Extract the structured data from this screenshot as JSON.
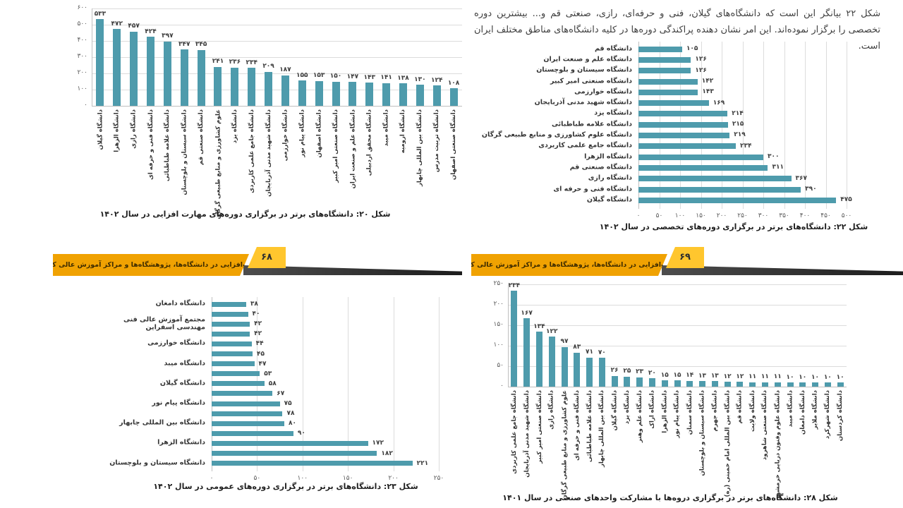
{
  "page_text": {
    "intro": "شکل ۲۲ بیانگر این است که دانشگاه‌های گیلان، فنی و حرفه‌ای، رازی، صنعتی قم و... بیشترین دوره تخصصی را برگزار نموده‌اند. این امر نشان دهنده پراکندگی دوره‌ها در کلیه دانشگاه‌های مناطق مختلف ایران است."
  },
  "banners": [
    {
      "title": "مهارت‌افزایی در دانشگاه‌ها، پژوهشگاه‌ها و مراکز آموزش عالی کشور",
      "page_number": "۶۸"
    },
    {
      "title": "مهارت‌افزایی در دانشگاه‌ها، پژوهشگاه‌ها و مراکز آموزش عالی کشور",
      "page_number": "۶۹"
    }
  ],
  "colors": {
    "bar": "#4E9BAC",
    "banner_orange": "#F0A202",
    "banner_yellow": "#FFC62E",
    "banner_shadow": "#333333"
  },
  "chart_data": [
    {
      "type": "bar",
      "orientation": "vertical",
      "title": "شکل ۲۰: دانشگاه‌های برتر در برگزاری دوره‌های مهارت افزایی در سال ۱۴۰۲",
      "categories": [
        "دانشگاه گیلان",
        "دانشگاه الزهرا",
        "دانشگاه رازی",
        "دانشگاه فنی و حرفه ای",
        "دانشگاه علامه طباطبائی",
        "دانشگاه سیستان و بلوچستان",
        "دانشگاه صنعتی قم",
        "علوم کشاورزی و منابع طبیعی گرگان",
        "دانشگاه یزد",
        "دانشگاه جامع علمی کاربردی",
        "دانشگاه شهید مدنی آذربایجان",
        "دانشگاه خوارزمی",
        "دانشگاه پیام نور",
        "دانشگاه اصفهان",
        "دانشگاه صنعتی امیر کبیر",
        "دانشگاه علم و صنعت ایران",
        "دانشگاه محقق اردبیلی",
        "دانشگاه میبد",
        "دانشگاه ارومیه",
        "دانشگاه بین المللی چابهار",
        "دانشگاه تربیت مدرس",
        "دانشگاه صنعتی اصفهان"
      ],
      "values": [
        533,
        472,
        457,
        424,
        397,
        347,
        345,
        241,
        236,
        234,
        209,
        187,
        155,
        153,
        150,
        147,
        143,
        141,
        138,
        130,
        124,
        108
      ],
      "ticks": [
        0,
        100,
        200,
        300,
        400,
        500,
        600
      ],
      "axis_max": 600,
      "grid": true,
      "legend": false
    },
    {
      "type": "bar",
      "orientation": "horizontal",
      "title": "شکل ۲۲: دانشگاه‌های برتر در برگزاری دوره‌های تخصصی در سال ۱۴۰۲",
      "categories": [
        "دانشگاه قم",
        "دانشگاه علم و صنعت ایران",
        "دانشگاه سیستان و بلوچستان",
        "دانشگاه صنعتی امیر کبیر",
        "دانشگاه خوارزمی",
        "دانشگاه شهید مدنی آذربایجان",
        "دانشگاه یزد",
        "دانشگاه علامه طباطبائی",
        "دانشگاه علوم کشاورزی و منابع طبیعی گرگان",
        "دانشگاه جامع علمی کاربردی",
        "دانشگاه الزهرا",
        "دانشگاه صنعتی قم",
        "دانشگاه رازی",
        "دانشگاه فنی و حرفه ای",
        "دانشگاه گیلان"
      ],
      "values": [
        105,
        126,
        126,
        142,
        143,
        169,
        214,
        215,
        219,
        234,
        300,
        311,
        367,
        390,
        475
      ],
      "ticks": [
        0,
        50,
        100,
        150,
        200,
        250,
        300,
        350,
        400,
        450,
        500
      ],
      "axis_max": 500,
      "grid": true,
      "legend": false
    },
    {
      "type": "bar",
      "orientation": "horizontal",
      "title": "شکل ۲۳: دانشگاه‌های برتر در برگزاری دوره‌های عمومی در سال ۱۴۰۲",
      "categories": [
        "دانشگاه دامغان",
        "",
        "مجتمع آموزش عالی فنی مهندسی اسفراین",
        "",
        "دانشگاه خوارزمی",
        "",
        "دانشگاه میبد",
        "",
        "دانشگاه گیلان",
        "",
        "دانشگاه پیام نور",
        "",
        "دانشگاه بین المللی چابهار",
        "",
        "دانشگاه الزهرا",
        "",
        "دانشگاه سیستان و بلوچستان"
      ],
      "values": [
        38,
        40,
        42,
        42,
        44,
        45,
        47,
        53,
        58,
        67,
        75,
        78,
        80,
        90,
        172,
        182,
        221
      ],
      "ticks": [
        0,
        50,
        100,
        150,
        200,
        250
      ],
      "axis_max": 250,
      "grid": true,
      "legend": false
    },
    {
      "type": "bar",
      "orientation": "vertical",
      "title": "شکل ۲۸: دانشگاه‌های برتر در برگزاری دروه‌ها با مشارکت واحدهای صنعتی در سال ۱۴۰۱",
      "categories": [
        "دانشگاه جامع علمی کاربردی",
        "دانشگاه شهید مدنی آذربایجان",
        "دانشگاه صنعتی امیر کبیر",
        "دانشگاه رازی",
        "علوم کشاورزی و منابع طبیعی گرگان",
        "دانشگاه فنی و حرفه ای",
        "دانشگاه علامه طباطبائی",
        "دانشگاه بین المللی چابهار",
        "دانشگاه گیلان",
        "دانشگاه یزد",
        "دانشگاه علم وهنر",
        "دانشگاه اراک",
        "دانشگاه الزهرا",
        "دانشگاه پیام نور",
        "دانشگاه سمنان",
        "دانشگاه سیستان و بلوچستان",
        "دانشگاه جهرم",
        "دانشگاه بین المللی امام خمینی (ره)",
        "دانشگاه قم",
        "دانشگاه ولایت",
        "دانشگاه صنعتی شاهرود",
        "دانشگاه علوم وفنون دریایی خرمشهر",
        "دانشگاه میبد",
        "دانشگاه دامغان",
        "دانشگاه ملایر",
        "دانشگاه شهرکرد",
        "دانشگاه کردستان"
      ],
      "values": [
        234,
        167,
        134,
        122,
        97,
        83,
        71,
        70,
        26,
        25,
        23,
        20,
        15,
        15,
        14,
        13,
        13,
        12,
        12,
        11,
        11,
        11,
        10,
        10,
        10,
        10,
        10
      ],
      "ticks": [
        0,
        50,
        100,
        150,
        200,
        250
      ],
      "axis_max": 250,
      "grid": true,
      "legend": false
    }
  ]
}
